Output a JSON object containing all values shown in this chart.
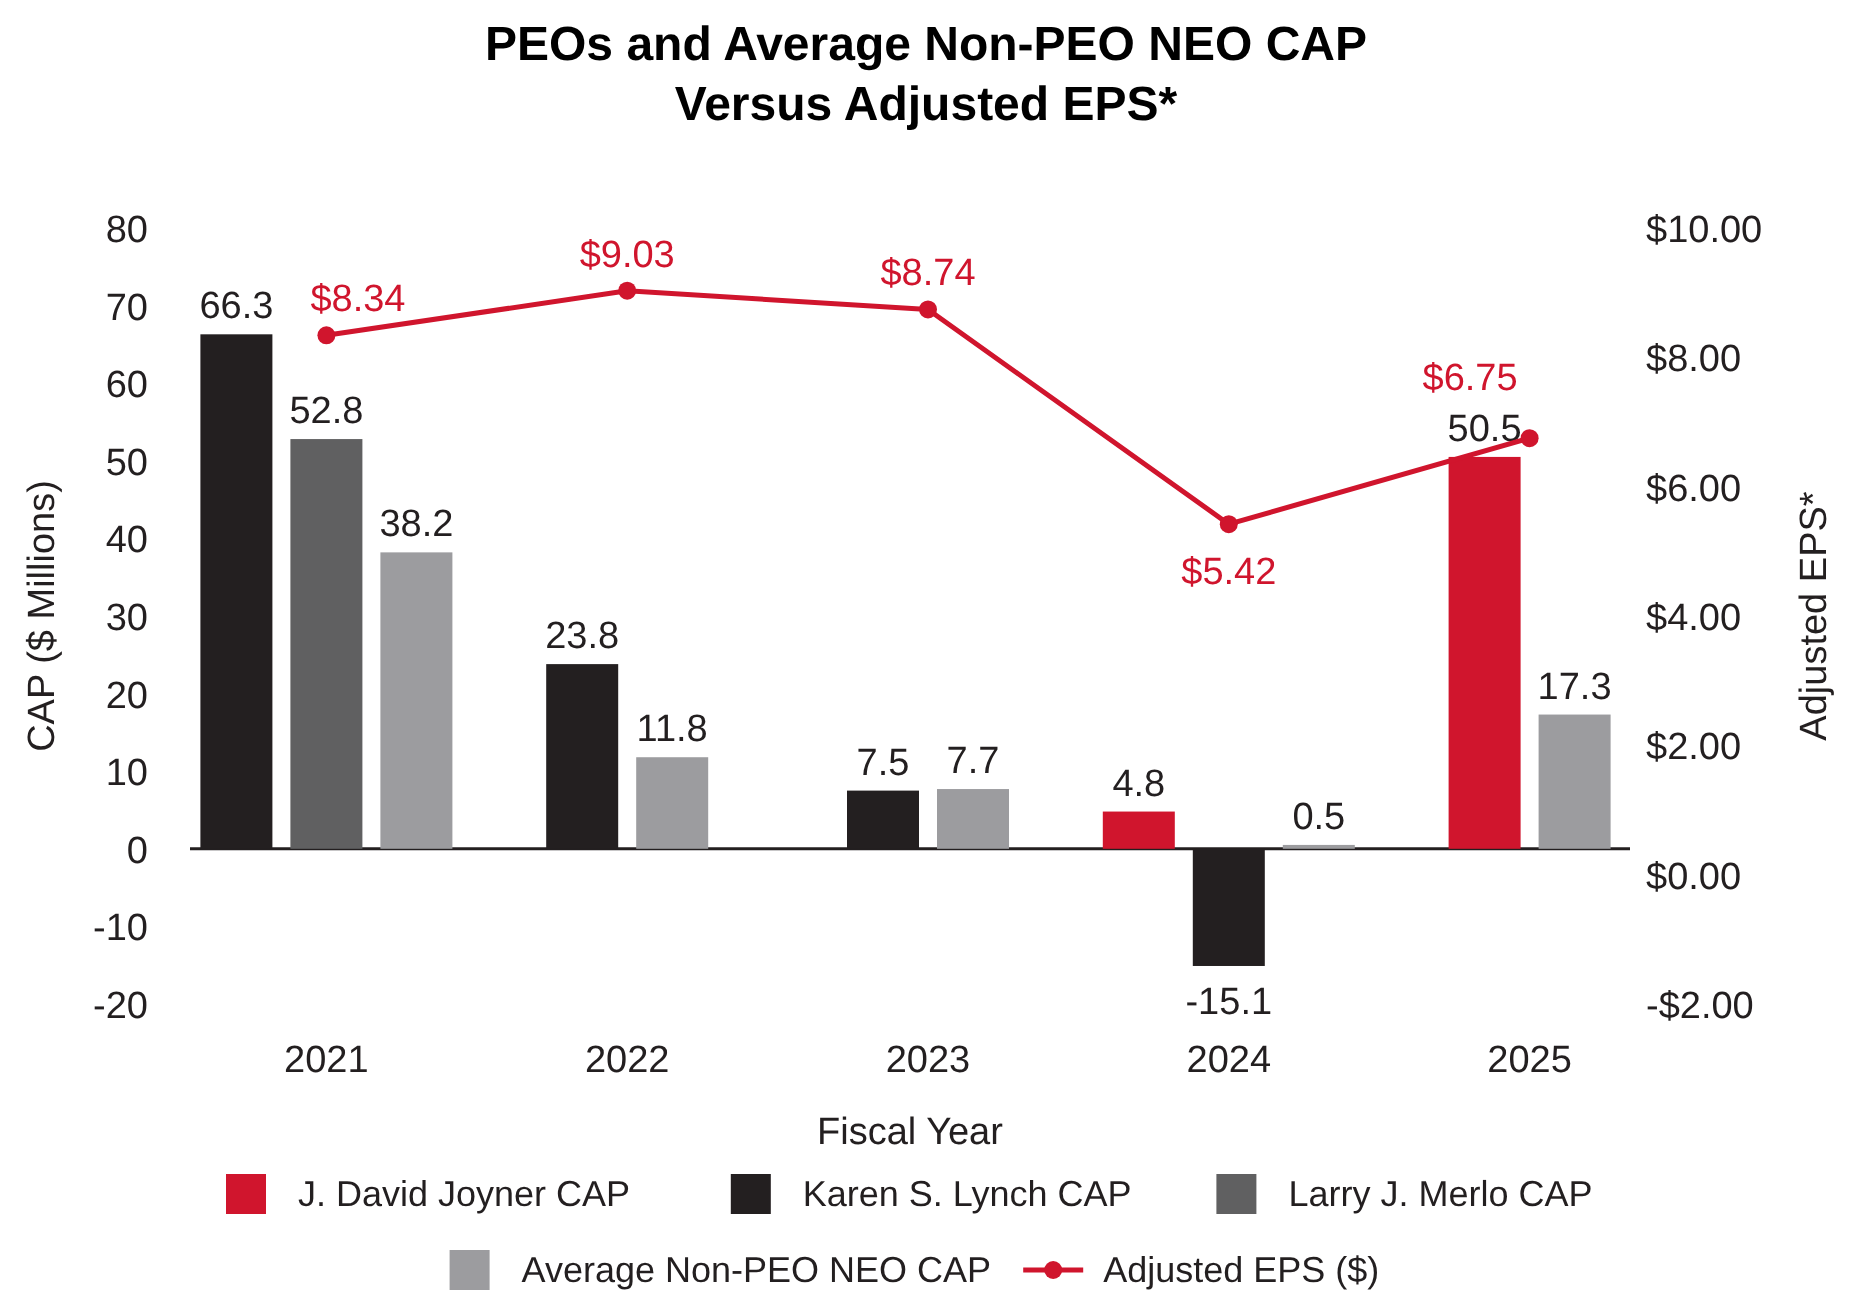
{
  "chart_data": {
    "type": "bar",
    "title": "PEOs and Average Non-PEO NEO CAP\nVersus Adjusted EPS*",
    "xlabel": "Fiscal Year",
    "ylabel": "CAP ($ Millions)",
    "y2label": "Adjusted EPS*",
    "categories": [
      "2021",
      "2022",
      "2023",
      "2024",
      "2025"
    ],
    "ylim": [
      -20,
      80
    ],
    "yticks": [
      -20,
      -10,
      0,
      10,
      20,
      30,
      40,
      50,
      60,
      70,
      80
    ],
    "y2lim": [
      -2,
      10
    ],
    "y2ticks": [
      {
        "value": -2,
        "label": "-$2.00"
      },
      {
        "value": 0,
        "label": "$0.00"
      },
      {
        "value": 2,
        "label": "$2.00"
      },
      {
        "value": 4,
        "label": "$4.00"
      },
      {
        "value": 6,
        "label": "$6.00"
      },
      {
        "value": 8,
        "label": "$8.00"
      },
      {
        "value": 10,
        "label": "$10.00"
      }
    ],
    "series": [
      {
        "name": "J. David Joyner CAP",
        "color": "#d0152d",
        "values": [
          null,
          null,
          null,
          4.8,
          50.5
        ],
        "value_labels": [
          null,
          null,
          null,
          "4.8",
          "50.5"
        ]
      },
      {
        "name": "Karen S. Lynch CAP",
        "color": "#231f20",
        "values": [
          66.3,
          23.8,
          7.5,
          -15.1,
          null
        ],
        "value_labels": [
          "66.3",
          "23.8",
          "7.5",
          "-15.1",
          null
        ]
      },
      {
        "name": "Larry J. Merlo CAP",
        "color": "#606061",
        "values": [
          52.8,
          null,
          null,
          null,
          null
        ],
        "value_labels": [
          "52.8",
          null,
          null,
          null,
          null
        ]
      },
      {
        "name": "Average Non-PEO NEO CAP",
        "color": "#9c9c9f",
        "values": [
          38.2,
          11.8,
          7.7,
          0.5,
          17.3
        ],
        "value_labels": [
          "38.2",
          "11.8",
          "7.7",
          "0.5",
          "17.3"
        ]
      },
      {
        "name": "Adjusted EPS ($)",
        "type": "line",
        "axis": "y2",
        "color": "#d0152d",
        "marker": "circle",
        "values": [
          8.34,
          9.03,
          8.74,
          5.42,
          6.75
        ],
        "value_labels": [
          "$8.34",
          "$9.03",
          "$8.74",
          "$5.42",
          "$6.75"
        ]
      }
    ],
    "legend": "bottom"
  }
}
